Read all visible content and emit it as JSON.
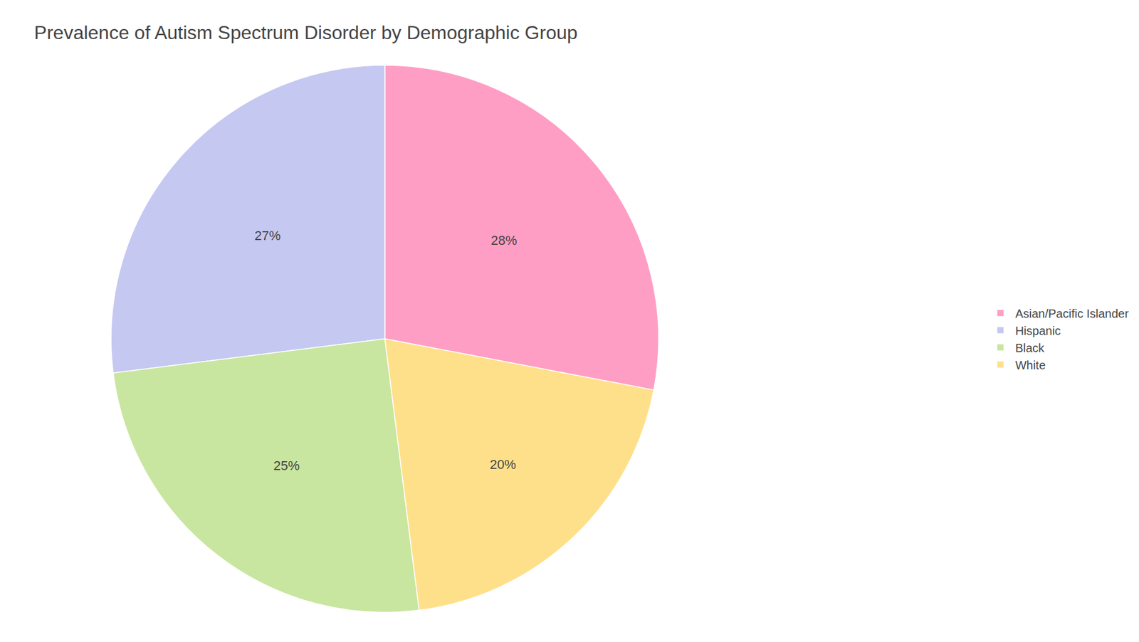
{
  "chart_data": {
    "type": "pie",
    "title": "Prevalence of Autism Spectrum Disorder by Demographic Group",
    "categories": [
      "Asian/Pacific Islander",
      "Hispanic",
      "Black",
      "White"
    ],
    "values": [
      28,
      27,
      25,
      20
    ],
    "value_labels": [
      "28%",
      "27%",
      "25%",
      "20%"
    ],
    "colors": [
      "#FF9EC4",
      "#C5C8F0",
      "#C8E6A0",
      "#FFE08A"
    ],
    "data_labels": true,
    "legend": "right"
  }
}
